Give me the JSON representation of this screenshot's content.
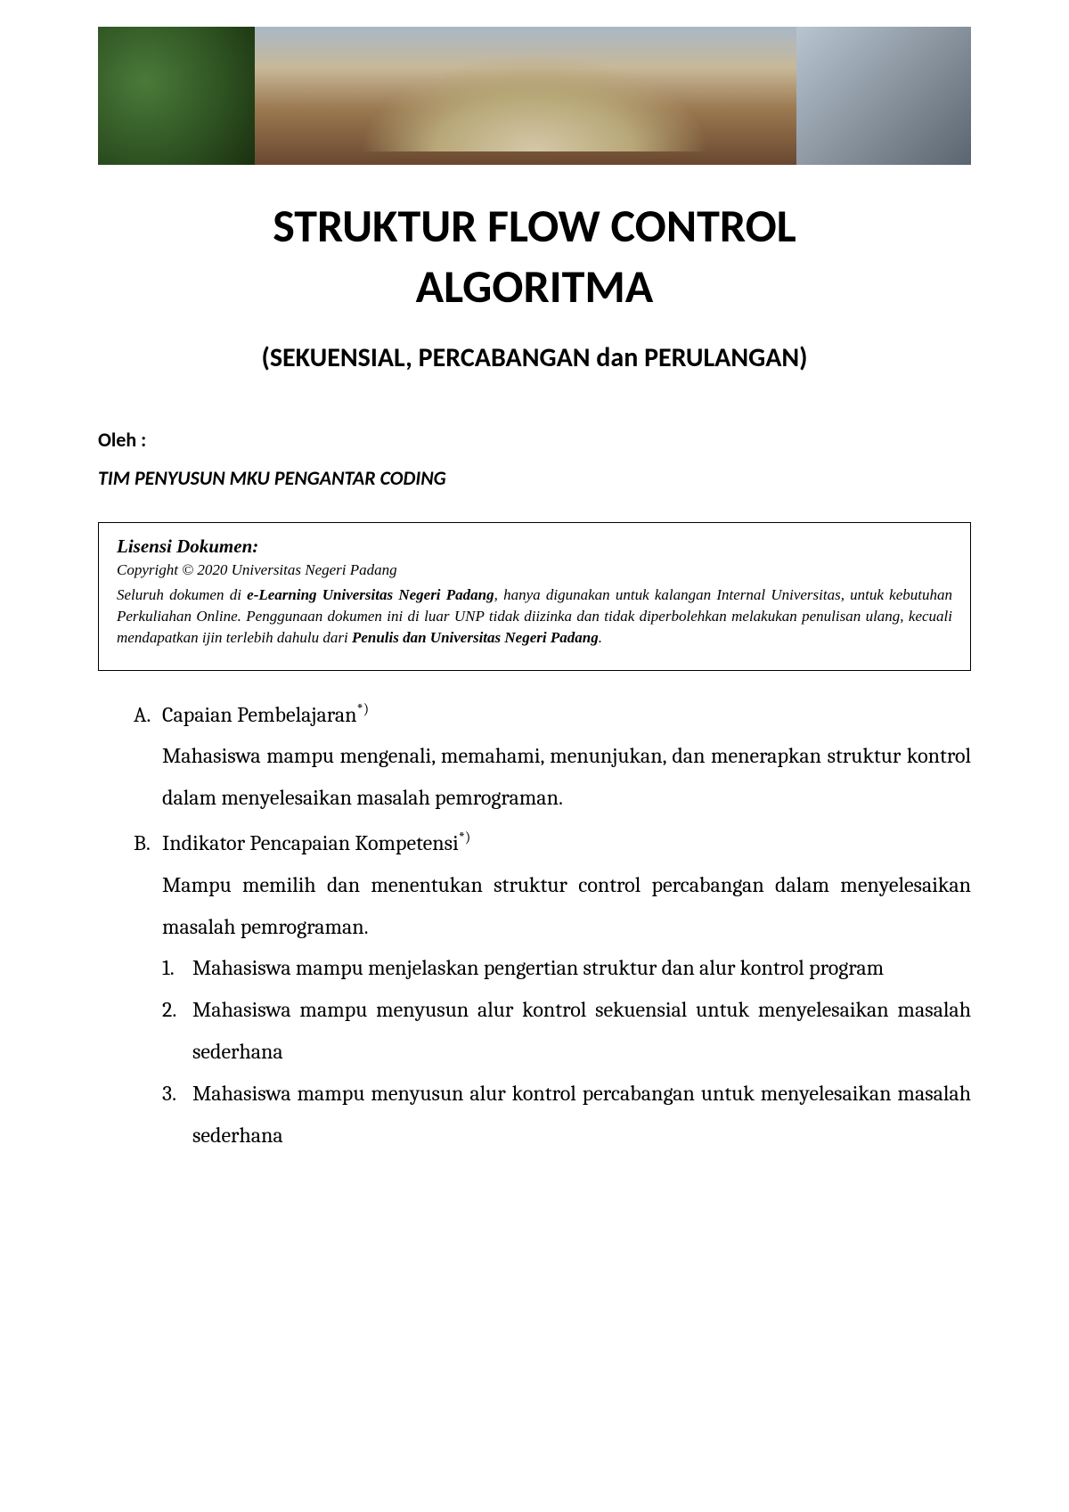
{
  "title_line1": "STRUKTUR FLOW CONTROL",
  "title_line2": "ALGORITMA",
  "subtitle": "(SEKUENSIAL, PERCABANGAN dan PERULANGAN)",
  "author_label": "Oleh :",
  "author_name": "TIM PENYUSUN MKU PENGANTAR CODING",
  "license": {
    "title": "Lisensi Dokumen:",
    "copyright": "Copyright © 2020 Universitas Negeri Padang",
    "body_prefix": "Seluruh dokumen di ",
    "body_bold1": "e-Learning Universitas Negeri Padang",
    "body_mid": ", hanya digunakan untuk kalangan Internal Universitas, untuk kebutuhan Perkuliahan Online. Penggunaan dokumen ini di luar UNP tidak diizinka dan tidak diperbolehkan melakukan penulisan ulang, kecuali mendapatkan ijin terlebih dahulu dari ",
    "body_bold2": "Penulis dan Universitas Negeri Padang",
    "body_suffix": "."
  },
  "sections": {
    "a": {
      "marker": "A.",
      "heading": "Capaian Pembelajaran",
      "sup": "*)",
      "body": "Mahasiswa mampu mengenali, memahami, menunjukan, dan menerapkan struktur kontrol dalam menyelesaikan masalah pemrograman."
    },
    "b": {
      "marker": "B.",
      "heading": "Indikator Pencapaian Kompetensi",
      "sup": "*)",
      "body": "Mampu memilih dan menentukan struktur control percabangan dalam menyelesaikan masalah pemrograman.",
      "items": [
        {
          "marker": "1.",
          "text": "Mahasiswa mampu menjelaskan pengertian struktur dan alur kontrol program"
        },
        {
          "marker": "2.",
          "text": "Mahasiswa mampu menyusun alur kontrol sekuensial untuk menyelesaikan masalah sederhana"
        },
        {
          "marker": "3.",
          "text": "Mahasiswa mampu menyusun alur kontrol percabangan untuk menyelesaikan masalah sederhana"
        }
      ]
    }
  }
}
